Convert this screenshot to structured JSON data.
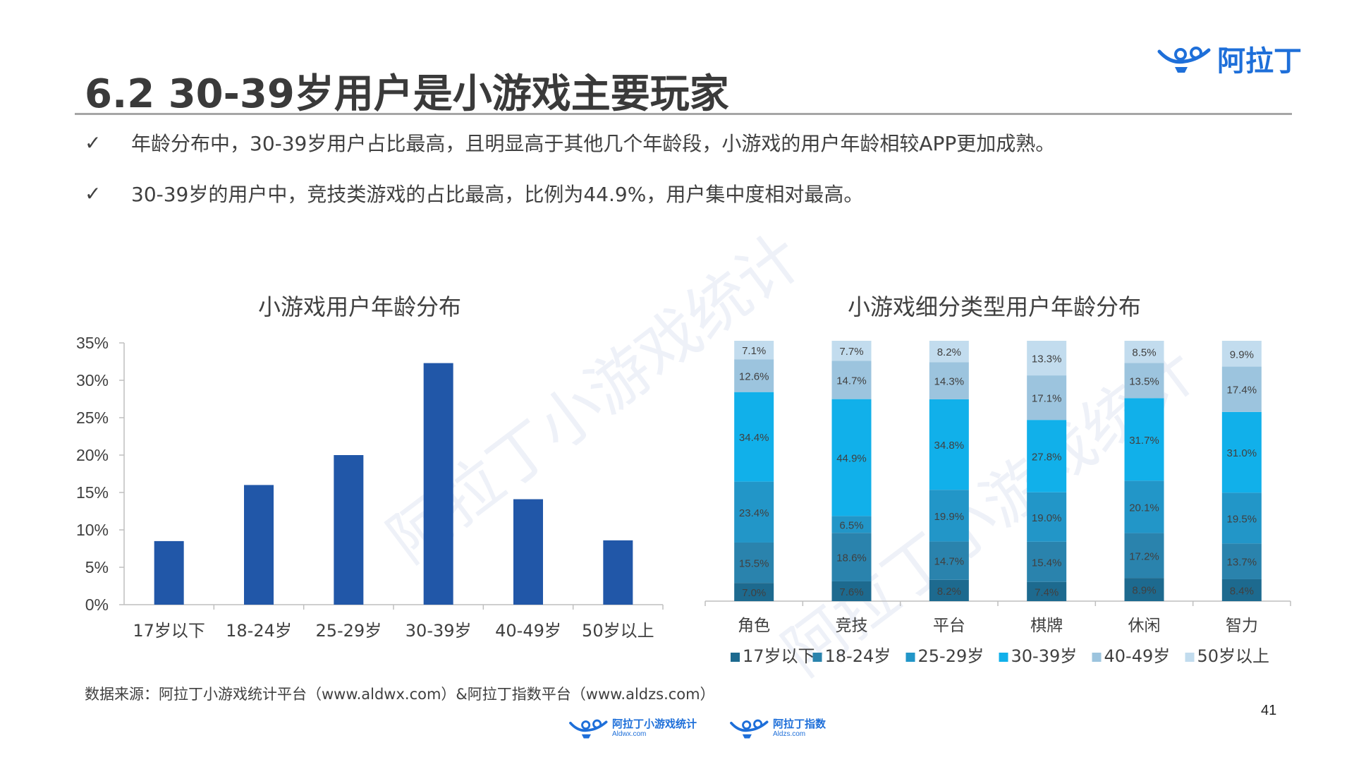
{
  "header": {
    "title": "6.2 30-39岁用户是小游戏主要玩家",
    "brand": "阿拉丁"
  },
  "bullets": [
    "年龄分布中，30-39岁用户占比最高，且明显高于其他几个年龄段，小游戏的用户年龄相较APP更加成熟。",
    "30-39岁的用户中，竞技类游戏的占比最高，比例为44.9%，用户集中度相对最高。"
  ],
  "check_glyph": "✓",
  "chart_data": [
    {
      "type": "bar",
      "title": "小游戏用户年龄分布",
      "categories": [
        "17岁以下",
        "18-24岁",
        "25-29岁",
        "30-39岁",
        "40-49岁",
        "50岁以上"
      ],
      "values": [
        8.5,
        16.0,
        20.0,
        32.3,
        14.1,
        8.6
      ],
      "yticks": [
        "0%",
        "5%",
        "10%",
        "15%",
        "20%",
        "25%",
        "30%",
        "35%"
      ],
      "ylim": [
        0,
        35
      ],
      "color": "#2157a8",
      "xlabel": "",
      "ylabel": ""
    },
    {
      "type": "bar",
      "stacked": true,
      "title": "小游戏细分类型用户年龄分布",
      "categories": [
        "角色",
        "竞技",
        "平台",
        "棋牌",
        "休闲",
        "智力"
      ],
      "ylim": [
        0,
        100
      ],
      "legend_position": "bottom",
      "series": [
        {
          "name": "17岁以下",
          "color": "#1d6a8f",
          "values": [
            7.0,
            7.6,
            8.2,
            7.4,
            8.9,
            8.4
          ],
          "labels": [
            "7.0%",
            "7.6%",
            "8.2%",
            "7.4%",
            "8.9%",
            "8.4%"
          ]
        },
        {
          "name": "18-24岁",
          "color": "#2a83ad",
          "values": [
            15.5,
            18.6,
            14.7,
            15.4,
            17.2,
            13.7
          ],
          "labels": [
            "15.5%",
            "18.6%",
            "14.7%",
            "15.4%",
            "17.2%",
            "13.7%"
          ]
        },
        {
          "name": "25-29岁",
          "color": "#2296c8",
          "values": [
            23.4,
            6.5,
            19.9,
            19.0,
            20.1,
            19.5
          ],
          "labels": [
            "23.4%",
            "6.5%",
            "19.9%",
            "19.0%",
            "20.1%",
            "19.5%"
          ]
        },
        {
          "name": "30-39岁",
          "color": "#11b0ea",
          "values": [
            34.4,
            44.9,
            34.8,
            27.8,
            31.7,
            31.0
          ],
          "labels": [
            "34.4%",
            "44.9%",
            "34.8%",
            "27.8%",
            "31.7%",
            "31.0%"
          ]
        },
        {
          "name": "40-49岁",
          "color": "#9cc4de",
          "values": [
            12.6,
            14.7,
            14.3,
            17.1,
            13.5,
            17.4
          ],
          "labels": [
            "12.6%",
            "14.7%",
            "14.3%",
            "17.1%",
            "13.5%",
            "17.4%"
          ]
        },
        {
          "name": "50岁以上",
          "color": "#c2dcee",
          "values": [
            7.1,
            7.7,
            8.2,
            13.3,
            8.5,
            9.9
          ],
          "labels": [
            "7.1%",
            "7.7%",
            "8.2%",
            "13.3%",
            "8.5%",
            "9.9%"
          ]
        }
      ]
    }
  ],
  "watermark": "阿拉丁小游戏统计",
  "footer": {
    "source": "数据来源：阿拉丁小游戏统计平台（www.aldwx.com）&阿拉丁指数平台（www.aldzs.com）",
    "page_number": "41",
    "logos": [
      {
        "name": "阿拉丁小游戏统计",
        "url": "Aldwx.com"
      },
      {
        "name": "阿拉丁指数",
        "url": "Aldzs.com"
      }
    ]
  },
  "colors": {
    "brand": "#1e6fd9",
    "axis": "#bfbfbf",
    "text": "#404040"
  }
}
